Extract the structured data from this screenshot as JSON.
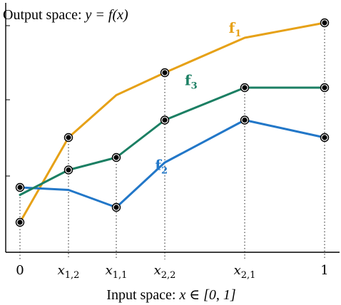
{
  "chart_data": {
    "type": "line",
    "title": "Output space: y = f(x)",
    "title_parts": {
      "prefix": "Output space: ",
      "math": "y = f(x)"
    },
    "xlabel": "Input space: x ∈ [0, 1]",
    "xlabel_parts": {
      "prefix": "Input space: ",
      "math": "x ∈ [0, 1]"
    },
    "x_ticks": [
      {
        "value": 0,
        "label": "0"
      },
      {
        "value": 0.2,
        "label": "x1,2"
      },
      {
        "value": 0.4,
        "label": "x1,1"
      },
      {
        "value": 0.6,
        "label": "x2,2"
      },
      {
        "value": 0.8,
        "label": "x2,1"
      },
      {
        "value": 1,
        "label": "1"
      }
    ],
    "x": [
      0,
      0.2,
      0.4,
      0.6,
      0.8,
      1
    ],
    "xlim": [
      0,
      1
    ],
    "ylim": [
      0,
      1
    ],
    "grid": false,
    "series": [
      {
        "name": "f1",
        "color": "#E6A117",
        "label_x": 0.76,
        "label_y": 0.88,
        "values": [
          0.12,
          0.46,
          null,
          0.72,
          null,
          0.92
        ],
        "points": [
          [
            0,
            0.12
          ],
          [
            0.2,
            0.46
          ],
          [
            0.4,
            0.63
          ],
          [
            0.6,
            0.72
          ],
          [
            0.8,
            0.86
          ],
          [
            1,
            0.92
          ]
        ]
      },
      {
        "name": "f2",
        "color": "#2277C8",
        "label_x": 0.56,
        "label_y": 0.33,
        "points": [
          [
            0,
            0.26
          ],
          [
            0.2,
            0.25
          ],
          [
            0.4,
            0.18
          ],
          [
            0.6,
            0.36
          ],
          [
            0.8,
            0.53
          ],
          [
            1,
            0.46
          ]
        ]
      },
      {
        "name": "f3",
        "color": "#1B7F63",
        "label_x": 0.65,
        "label_y": 0.67,
        "points": [
          [
            0,
            0.23
          ],
          [
            0.2,
            0.33
          ],
          [
            0.4,
            0.38
          ],
          [
            0.6,
            0.53
          ],
          [
            0.8,
            0.66
          ],
          [
            1,
            0.66
          ]
        ]
      }
    ],
    "markers": [
      [
        0,
        0.12
      ],
      [
        0,
        0.26
      ],
      [
        0.2,
        0.46
      ],
      [
        0.2,
        0.33
      ],
      [
        0.4,
        0.38
      ],
      [
        0.4,
        0.18
      ],
      [
        0.6,
        0.72
      ],
      [
        0.6,
        0.53
      ],
      [
        0.8,
        0.66
      ],
      [
        0.8,
        0.53
      ],
      [
        1,
        0.92
      ],
      [
        1,
        0.66
      ],
      [
        1,
        0.46
      ]
    ],
    "marker_style": "black circled dot"
  }
}
